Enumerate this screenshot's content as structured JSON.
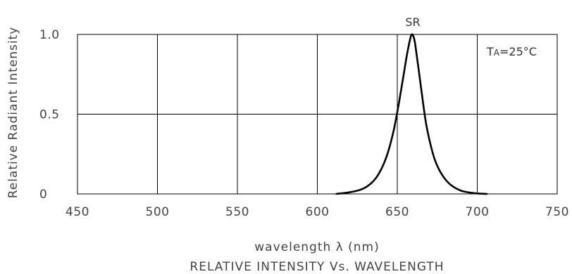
{
  "chart_data": {
    "type": "line",
    "title": "RELATIVE INTENSITY Vs. WAVELENGTH",
    "xlabel": "wavelength λ  (nm)",
    "ylabel": "Relative Radiant Intensity",
    "xlim": [
      450,
      750
    ],
    "ylim": [
      0,
      1.0
    ],
    "x_ticks": [
      450,
      500,
      550,
      600,
      650,
      700,
      750
    ],
    "y_ticks": [
      {
        "value": 0,
        "label": "0"
      },
      {
        "value": 0.5,
        "label": "0.5"
      },
      {
        "value": 1.0,
        "label": "1.0"
      }
    ],
    "grid": true,
    "series": [
      {
        "name": "SR",
        "color": "#000000",
        "x": [
          612,
          620,
          628,
          634,
          638,
          642,
          645,
          648,
          651,
          654,
          656,
          658,
          659,
          660,
          661,
          662,
          664,
          666,
          668,
          671,
          674,
          678,
          683,
          690,
          698,
          706
        ],
        "y": [
          0.0,
          0.01,
          0.03,
          0.07,
          0.12,
          0.2,
          0.29,
          0.41,
          0.57,
          0.75,
          0.87,
          0.97,
          1.0,
          0.99,
          0.95,
          0.88,
          0.73,
          0.58,
          0.44,
          0.3,
          0.2,
          0.12,
          0.06,
          0.02,
          0.005,
          0.0
        ]
      }
    ],
    "annotations": {
      "peak_label": "SR",
      "condition_main": "T",
      "condition_sub": "A",
      "condition_rest": "=25°C"
    }
  }
}
